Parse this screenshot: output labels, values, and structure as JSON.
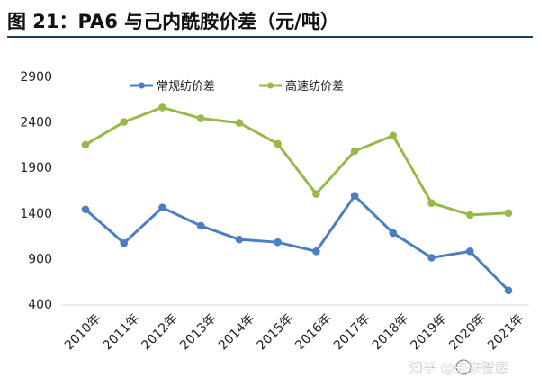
{
  "header": {
    "title": "图 21：PA6 与己内酰胺价差（元/吨）"
  },
  "chart_data": {
    "type": "line",
    "title": "",
    "xlabel": "",
    "ylabel": "",
    "categories": [
      "2010年",
      "2011年",
      "2012年",
      "2013年",
      "2014年",
      "2015年",
      "2016年",
      "2017年",
      "2018年",
      "2019年",
      "2020年",
      "2021年"
    ],
    "y_ticks": [
      "400",
      "900",
      "1400",
      "1900",
      "2400",
      "2900"
    ],
    "ylim": [
      400,
      2900
    ],
    "grid": false,
    "legend_position": "top-center",
    "series": [
      {
        "name": "常规纺价差",
        "color": "#4a7fc1",
        "values": [
          1440,
          1070,
          1460,
          1260,
          1110,
          1080,
          980,
          1590,
          1180,
          910,
          980,
          550
        ]
      },
      {
        "name": "高速纺价差",
        "color": "#97b94a",
        "values": [
          2150,
          2400,
          2560,
          2440,
          2390,
          2160,
          1610,
          2080,
          2250,
          1510,
          1380,
          1400
        ]
      }
    ]
  },
  "watermark": {
    "text": "知乎 @未来智库"
  }
}
